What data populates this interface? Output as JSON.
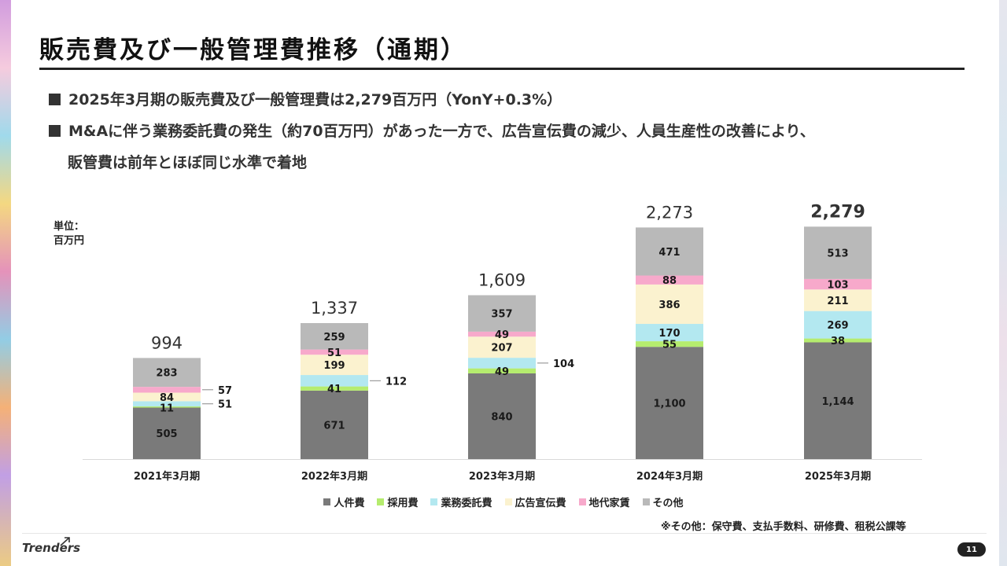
{
  "title": "販売費及び一般管理費推移（通期）",
  "bullets": [
    "2025年3月期の販売費及び一般管理費は2,279百万円（YonY+0.3%）",
    "M&Aに伴う業務委託費の発生（約70百万円）があった一方で、広告宣伝費の減少、人員生産性の改善により、",
    "販管費は前年とほぼ同じ水準で着地"
  ],
  "unit_label": [
    "単位：",
    "百万円"
  ],
  "chart_data": {
    "type": "bar",
    "stacked": true,
    "categories": [
      "2021年3月期",
      "2022年3月期",
      "2023年3月期",
      "2024年3月期",
      "2025年3月期"
    ],
    "series": [
      {
        "name": "人件費",
        "color": "#7a7a7a",
        "values": [
          505,
          671,
          840,
          1100,
          1144
        ]
      },
      {
        "name": "採用費",
        "color": "#b5ec6e",
        "values": [
          11,
          41,
          49,
          55,
          38
        ]
      },
      {
        "name": "業務委託費",
        "color": "#b3e8f0",
        "values": [
          51,
          112,
          104,
          170,
          269
        ]
      },
      {
        "name": "広告宣伝費",
        "color": "#fbf2cf",
        "values": [
          84,
          199,
          207,
          386,
          211
        ]
      },
      {
        "name": "地代家賃",
        "color": "#f7a9cb",
        "values": [
          57,
          51,
          49,
          88,
          103
        ]
      },
      {
        "name": "その他",
        "color": "#b9b9b9",
        "values": [
          283,
          259,
          357,
          471,
          513
        ]
      }
    ],
    "value_labels": [
      [
        "505",
        "671",
        "840",
        "1,100",
        "1,144"
      ],
      [
        "11",
        "41",
        "49",
        "55",
        "38"
      ],
      [
        "51",
        "112",
        "104",
        "170",
        "269"
      ],
      [
        "84",
        "199",
        "207",
        "386",
        "211"
      ],
      [
        "57",
        "51",
        "49",
        "88",
        "103"
      ],
      [
        "283",
        "259",
        "357",
        "471",
        "513"
      ]
    ],
    "totals": [
      "994",
      "1,337",
      "1,609",
      "2,273",
      "2,279"
    ],
    "legend_position": "bottom",
    "grid": false
  },
  "footnote": "※その他：保守費、支払手数料、研修費、租税公課等",
  "logo_text": "Trenders",
  "page_number": "11"
}
